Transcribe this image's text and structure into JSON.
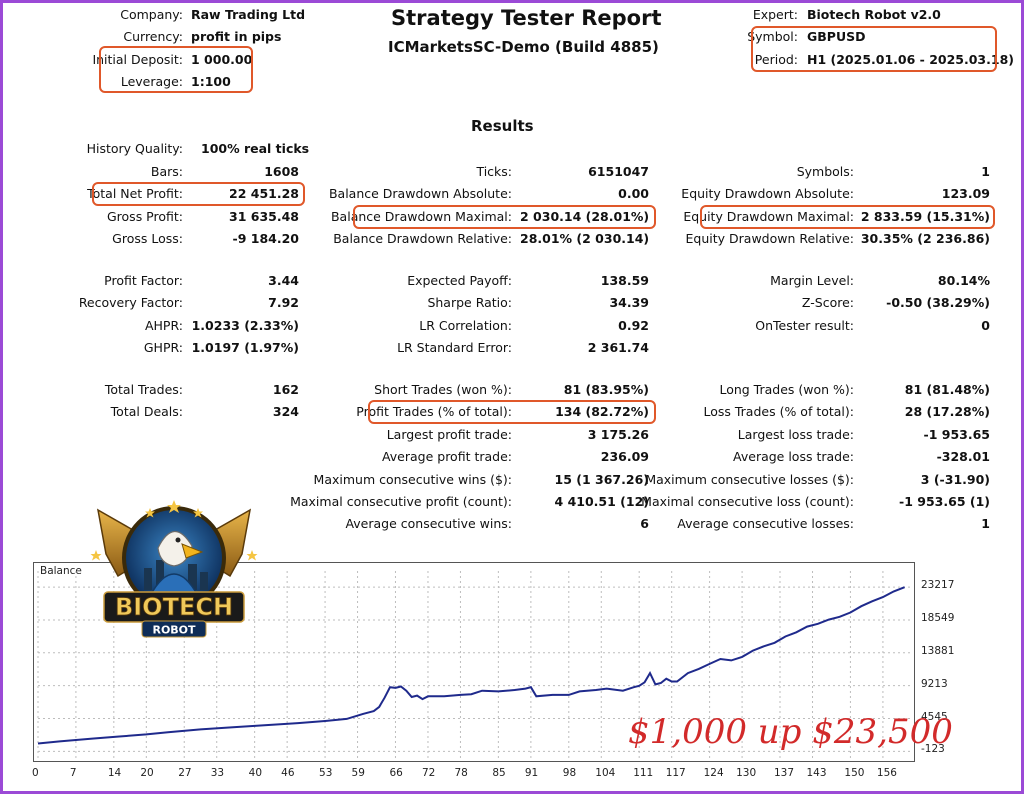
{
  "header": {
    "title": "Strategy Tester Report",
    "subtitle": "ICMarketsSC-Demo (Build 4885)",
    "left": [
      {
        "label": "Company:",
        "value": "Raw Trading Ltd"
      },
      {
        "label": "Currency:",
        "value": "profit in pips"
      },
      {
        "label": "Initial Deposit:",
        "value": "1 000.00"
      },
      {
        "label": "Leverage:",
        "value": "1:100"
      }
    ],
    "right": [
      {
        "label": "Expert:",
        "value": "Biotech Robot v2.0"
      },
      {
        "label": "Symbol:",
        "value": "GBPUSD"
      },
      {
        "label": "Period:",
        "value": "H1 (2025.01.06 - 2025.03.18)"
      }
    ]
  },
  "results": {
    "heading": "Results",
    "history_quality": {
      "label": "History Quality:",
      "value": "100% real ticks"
    },
    "col1": [
      {
        "label": "Bars:",
        "value": "1608"
      },
      {
        "label": "Total Net Profit:",
        "value": "22 451.28"
      },
      {
        "label": "Gross Profit:",
        "value": "31 635.48"
      },
      {
        "label": "Gross Loss:",
        "value": "-9 184.20"
      },
      {
        "label": "Profit Factor:",
        "value": "3.44"
      },
      {
        "label": "Recovery Factor:",
        "value": "7.92"
      },
      {
        "label": "AHPR:",
        "value": "1.0233 (2.33%)"
      },
      {
        "label": "GHPR:",
        "value": "1.0197 (1.97%)"
      },
      {
        "label": "Total Trades:",
        "value": "162"
      },
      {
        "label": "Total Deals:",
        "value": "324"
      }
    ],
    "col2": [
      {
        "label": "Ticks:",
        "value": "6151047"
      },
      {
        "label": "Balance Drawdown Absolute:",
        "value": "0.00"
      },
      {
        "label": "Balance Drawdown Maximal:",
        "value": "2 030.14 (28.01%)"
      },
      {
        "label": "Balance Drawdown Relative:",
        "value": "28.01% (2 030.14)"
      },
      {
        "label": "Expected Payoff:",
        "value": "138.59"
      },
      {
        "label": "Sharpe Ratio:",
        "value": "34.39"
      },
      {
        "label": "LR Correlation:",
        "value": "0.92"
      },
      {
        "label": "LR Standard Error:",
        "value": "2 361.74"
      },
      {
        "label": "Short Trades (won %):",
        "value": "81 (83.95%)"
      },
      {
        "label": "Profit Trades (% of total):",
        "value": "134 (82.72%)"
      },
      {
        "label": "Largest profit trade:",
        "value": "3 175.26"
      },
      {
        "label": "Average profit trade:",
        "value": "236.09"
      },
      {
        "label": "Maximum consecutive wins ($):",
        "value": "15 (1 367.26)"
      },
      {
        "label": "Maximal consecutive profit (count):",
        "value": "4 410.51 (12)"
      },
      {
        "label": "Average consecutive wins:",
        "value": "6"
      }
    ],
    "col3": [
      {
        "label": "Symbols:",
        "value": "1"
      },
      {
        "label": "Equity Drawdown Absolute:",
        "value": "123.09"
      },
      {
        "label": "Equity Drawdown Maximal:",
        "value": "2 833.59 (15.31%)"
      },
      {
        "label": "Equity Drawdown Relative:",
        "value": "30.35% (2 236.86)"
      },
      {
        "label": "Margin Level:",
        "value": "80.14%"
      },
      {
        "label": "Z-Score:",
        "value": "-0.50 (38.29%)"
      },
      {
        "label": "OnTester result:",
        "value": "0"
      },
      {
        "label": "Long Trades (won %):",
        "value": "81 (81.48%)"
      },
      {
        "label": "Loss Trades (% of total):",
        "value": "28 (17.28%)"
      },
      {
        "label": "Largest loss trade:",
        "value": "-1 953.65"
      },
      {
        "label": "Average loss trade:",
        "value": "-328.01"
      },
      {
        "label": "Maximum consecutive losses ($):",
        "value": "3 (-31.90)"
      },
      {
        "label": "Maximal consecutive loss (count):",
        "value": "-1 953.65 (1)"
      },
      {
        "label": "Average consecutive losses:",
        "value": "1"
      }
    ]
  },
  "logo": {
    "word1": "BIOTECH",
    "word2": "ROBOT"
  },
  "overlay_text": "$1,000 up $23,500",
  "colors": {
    "highlight": "#e0582a",
    "line": "#1f2a8c",
    "frame": "#9b4ad6",
    "overlay": "#d22a2a"
  },
  "chart_data": {
    "type": "line",
    "title": "Balance",
    "x_ticks": [
      "0",
      "7",
      "14",
      "20",
      "27",
      "33",
      "40",
      "46",
      "53",
      "59",
      "66",
      "72",
      "78",
      "85",
      "91",
      "98",
      "104",
      "111",
      "117",
      "124",
      "130",
      "137",
      "143",
      "150",
      "156"
    ],
    "y_ticks": [
      "23217",
      "18549",
      "13881",
      "9213",
      "4545",
      "-123"
    ],
    "xlim": [
      0,
      161
    ],
    "ylim": [
      -1200,
      25500
    ],
    "series": [
      {
        "x": [
          0,
          4,
          10,
          15,
          20,
          24,
          30,
          36,
          40,
          44,
          48,
          53,
          57,
          60,
          62,
          63,
          64,
          65,
          66,
          67,
          68,
          69,
          70,
          71,
          72,
          75,
          78,
          80,
          82,
          85,
          88,
          90,
          91,
          92,
          95,
          98,
          100,
          103,
          105,
          108,
          110,
          111,
          112,
          113,
          114,
          115,
          116,
          117,
          118,
          120,
          122,
          124,
          126,
          128,
          130,
          132,
          134,
          136,
          138,
          140,
          142,
          144,
          146,
          148,
          150,
          152,
          154,
          156,
          158,
          160
        ],
        "y": [
          1000,
          1300,
          1700,
          2000,
          2300,
          2600,
          3000,
          3300,
          3500,
          3700,
          3900,
          4200,
          4500,
          5200,
          5600,
          6200,
          7500,
          9000,
          8900,
          9100,
          8500,
          7600,
          7800,
          7300,
          7700,
          7700,
          7900,
          8000,
          8500,
          8400,
          8600,
          8800,
          9000,
          7700,
          7900,
          7900,
          8400,
          8600,
          8800,
          8500,
          9000,
          9200,
          9700,
          11000,
          9400,
          9600,
          10200,
          9800,
          9800,
          11000,
          11600,
          12300,
          13000,
          12800,
          13300,
          14200,
          14800,
          15300,
          16200,
          16800,
          17600,
          18000,
          18600,
          19000,
          19600,
          20500,
          21200,
          21800,
          22600,
          23200
        ]
      }
    ]
  }
}
